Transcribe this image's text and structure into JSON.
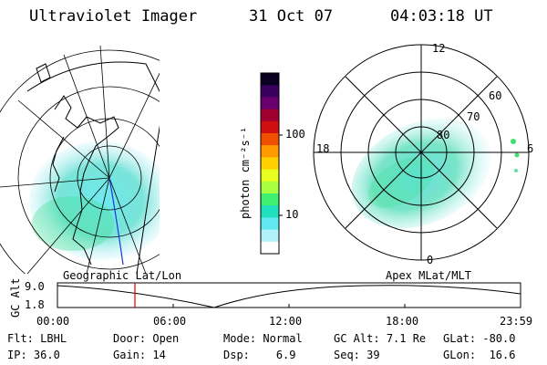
{
  "header": {
    "instrument": "Ultraviolet Imager",
    "date": "31 Oct 07",
    "time": "04:03:18 UT"
  },
  "colorbar": {
    "unit_label": "photon cm⁻²s⁻¹",
    "ticks": [
      "100",
      "10"
    ],
    "colors": [
      "#0a0020",
      "#3a0060",
      "#6a0070",
      "#a00030",
      "#d01010",
      "#f05000",
      "#ff9a00",
      "#ffd000",
      "#e8ff20",
      "#a8ff40",
      "#40f070",
      "#20e0c0",
      "#60e8f0",
      "#b0f0f8",
      "#ffffff"
    ]
  },
  "left_panel": {
    "label": "Geographic Lat/Lon"
  },
  "right_panel": {
    "label": "Apex MLat/MLT",
    "mlt_labels": {
      "top": "12",
      "left": "18",
      "right": "6",
      "bottom": "0"
    },
    "lat_labels": [
      "60",
      "70",
      "80"
    ]
  },
  "altitude_plot": {
    "ylabel": "GC Alt",
    "yticks": [
      "9.0",
      "1.8"
    ],
    "xticks": [
      "00:00",
      "06:00",
      "12:00",
      "18:00",
      "23:59"
    ],
    "marker_color": "#e00000",
    "marker_time": "04:03:18"
  },
  "status": {
    "flt_label": "Flt:",
    "flt_value": "LBHL",
    "door_label": "Door:",
    "door_value": "Open",
    "mode_label": "Mode:",
    "mode_value": "Normal",
    "gcalt_label": "GC Alt:",
    "gcalt_value": "7.1 Re",
    "glat_label": "GLat:",
    "glat_value": "-80.0",
    "ip_label": "IP:",
    "ip_value": "36.0",
    "gain_label": "Gain:",
    "gain_value": "14",
    "dsp_label": "Dsp:",
    "dsp_value": "6.9",
    "seq_label": "Seq:",
    "seq_value": "39",
    "glon_label": "GLon:",
    "glon_value": "16.6"
  }
}
